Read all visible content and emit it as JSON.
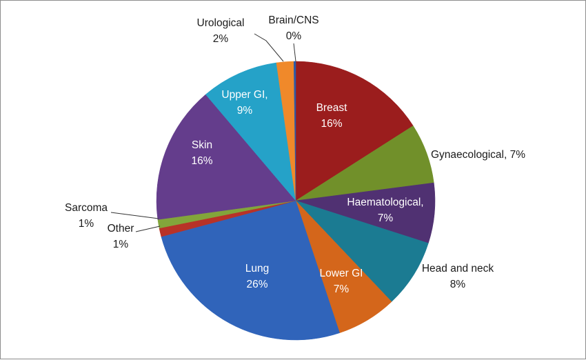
{
  "chart_data": {
    "type": "pie",
    "title": "",
    "slices": [
      {
        "category": "Breast",
        "value": 16,
        "label": "Breast",
        "value_label": "16%",
        "color": "#9b1d1d"
      },
      {
        "category": "Gynaecological",
        "value": 7,
        "label": "Gynaecological, 7%",
        "value_label": "",
        "color": "#71902a"
      },
      {
        "category": "Haematological",
        "value": 7,
        "label": "Haematological,",
        "value_label": "7%",
        "color": "#503172"
      },
      {
        "category": "Head and neck",
        "value": 8,
        "label": "Head and neck",
        "value_label": "8%",
        "color": "#1b7b92"
      },
      {
        "category": "Lower GI",
        "value": 7,
        "label": "Lower GI",
        "value_label": "7%",
        "color": "#d4661b"
      },
      {
        "category": "Lung",
        "value": 26,
        "label": "Lung",
        "value_label": "26%",
        "color": "#3064ba"
      },
      {
        "category": "Other",
        "value": 1,
        "label": "Other",
        "value_label": "1%",
        "color": "#b83227"
      },
      {
        "category": "Sarcoma",
        "value": 1,
        "label": "Sarcoma",
        "value_label": "1%",
        "color": "#82a53b"
      },
      {
        "category": "Skin",
        "value": 16,
        "label": "Skin",
        "value_label": "16%",
        "color": "#643d8c"
      },
      {
        "category": "Upper GI",
        "value": 9,
        "label": "Upper GI,",
        "value_label": "9%",
        "color": "#25a2c8"
      },
      {
        "category": "Urological",
        "value": 2,
        "label": "Urological",
        "value_label": "2%",
        "color": "#f0892a"
      },
      {
        "category": "Brain/CNS",
        "value": 0,
        "label": "Brain/CNS",
        "value_label": "0%",
        "color": "#2d5aa8"
      }
    ],
    "legend": "none"
  }
}
